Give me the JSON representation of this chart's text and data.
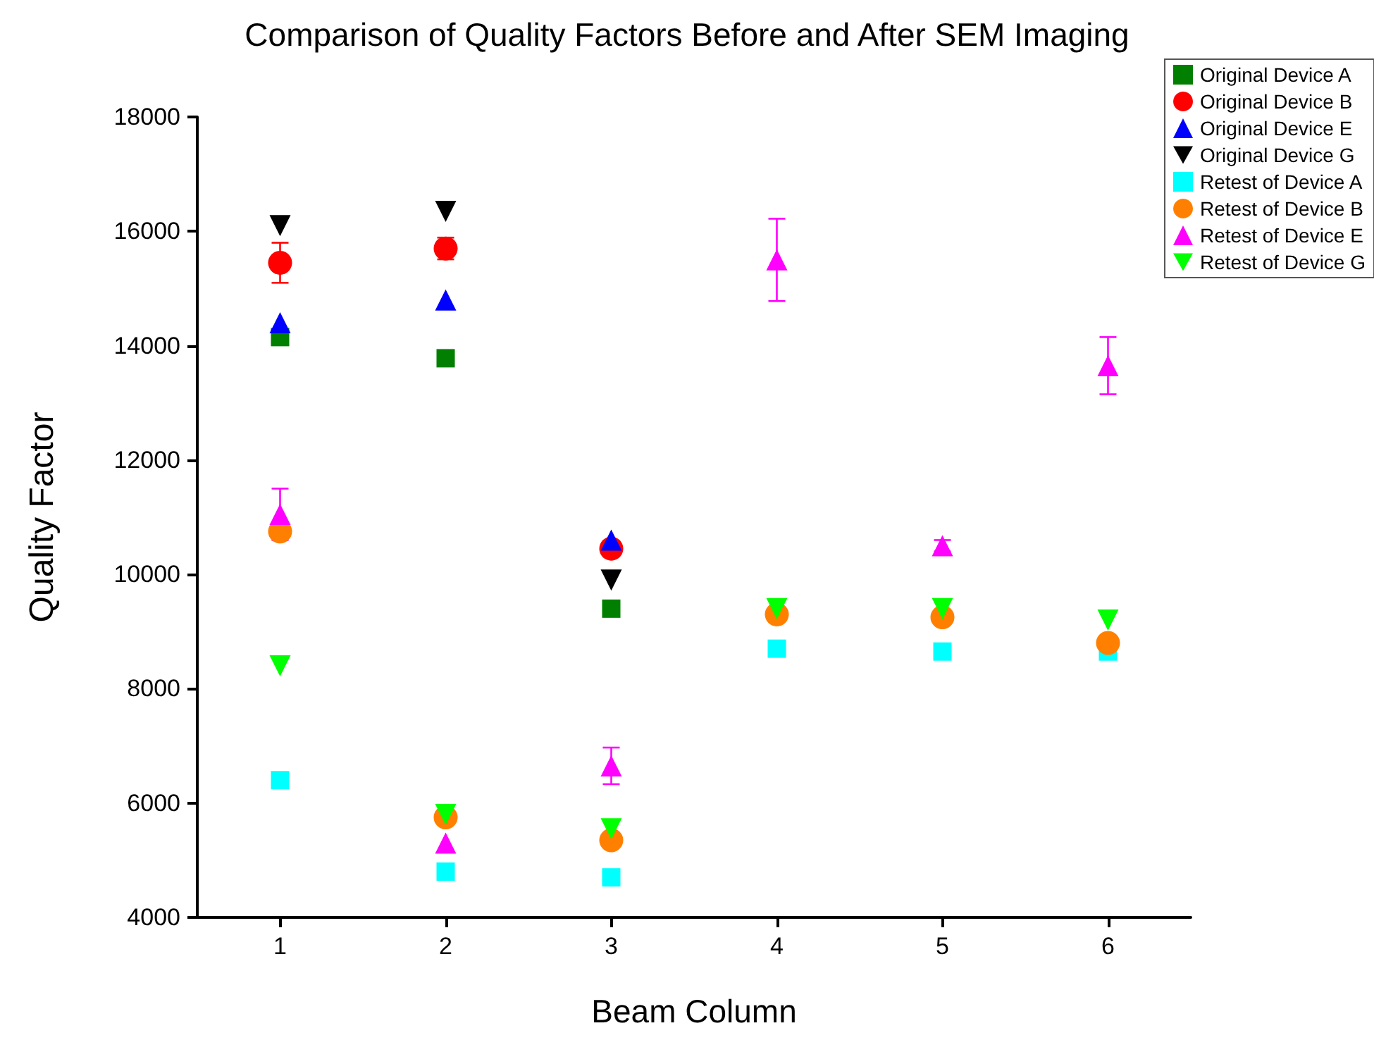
{
  "chart_data": {
    "type": "scatter",
    "title": "Comparison of Quality Factors Before and After SEM Imaging",
    "xlabel": "Beam Column",
    "ylabel": "Quality Factor",
    "xlim": [
      0.5,
      6.5
    ],
    "xticks": [
      1,
      2,
      3,
      4,
      5,
      6
    ],
    "ylim": [
      4000,
      18000
    ],
    "yticks": [
      4000,
      6000,
      8000,
      10000,
      12000,
      14000,
      16000,
      18000
    ],
    "grid": false,
    "legend": "top right",
    "series": [
      {
        "name": "Original Device A",
        "color": "#007f00",
        "marker": "square",
        "x": [
          1,
          2,
          3
        ],
        "values": [
          14150,
          13780,
          9400
        ]
      },
      {
        "name": "Original Device B",
        "color": "#ff0000",
        "marker": "circle",
        "x": [
          1,
          2,
          3
        ],
        "values": [
          15450,
          15700,
          10450
        ],
        "errors": [
          350,
          190,
          null
        ]
      },
      {
        "name": "Original Device E",
        "color": "#0000ff",
        "marker": "triangle",
        "x": [
          1,
          2,
          3
        ],
        "values": [
          14400,
          14800,
          10600
        ]
      },
      {
        "name": "Original Device G",
        "color": "#000000",
        "marker": "triangle-down",
        "x": [
          1,
          2,
          3
        ],
        "values": [
          16100,
          16350,
          9900
        ]
      },
      {
        "name": "Retest of Device A",
        "color": "#00ffff",
        "marker": "square",
        "x": [
          1,
          2,
          3,
          4,
          5,
          6
        ],
        "values": [
          6400,
          4800,
          4700,
          8700,
          8650,
          8650
        ]
      },
      {
        "name": "Retest of Device B",
        "color": "#ff8000",
        "marker": "circle",
        "x": [
          1,
          2,
          3,
          4,
          5,
          6
        ],
        "values": [
          10750,
          5750,
          5350,
          9300,
          9250,
          8800
        ]
      },
      {
        "name": "Retest of Device E",
        "color": "#ff00ff",
        "marker": "triangle",
        "x": [
          1,
          2,
          3,
          4,
          5,
          6
        ],
        "values": [
          11050,
          5300,
          6650,
          15500,
          10500,
          13650
        ],
        "errors": [
          450,
          null,
          320,
          720,
          100,
          500
        ]
      },
      {
        "name": "Retest of Device G",
        "color": "#00ff00",
        "marker": "triangle-down",
        "x": [
          1,
          2,
          3,
          4,
          5,
          6
        ],
        "values": [
          8400,
          5800,
          5550,
          9400,
          9400,
          9200
        ]
      }
    ]
  }
}
